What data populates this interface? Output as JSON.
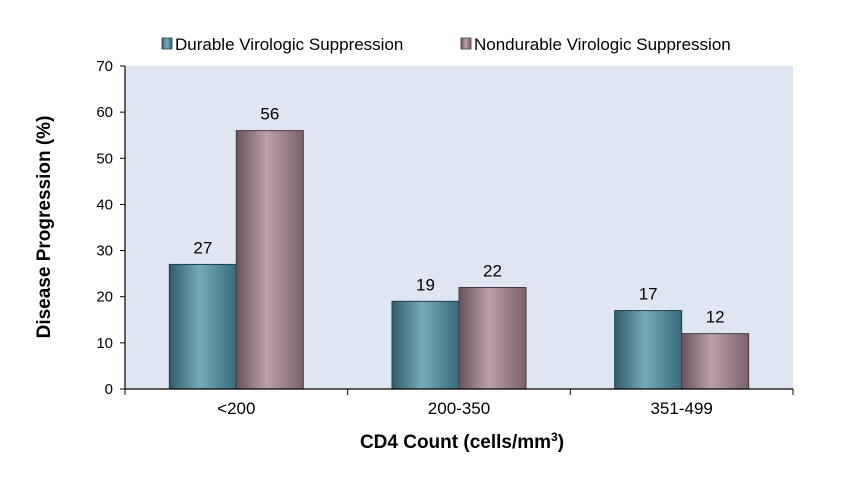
{
  "chart_data": {
    "type": "bar",
    "categories": [
      "<200",
      "200-350",
      "351-499"
    ],
    "series": [
      {
        "name": "Durable Virologic Suppression",
        "values": [
          27,
          19,
          17
        ],
        "color": "#4a8ea3"
      },
      {
        "name": "Nondurable Virologic Suppression",
        "values": [
          56,
          22,
          12
        ],
        "color": "#a3808e"
      }
    ],
    "xlabel": "CD4 Count (cells/mm",
    "xlabel_superscript": "3",
    "xlabel_suffix": ")",
    "ylabel": "Disease Progression (%)",
    "ylim": [
      0,
      70
    ],
    "yticks": [
      0,
      10,
      20,
      30,
      40,
      50,
      60,
      70
    ],
    "plot_background": "#dfe6f1",
    "legend_position": "top",
    "grid": false
  }
}
